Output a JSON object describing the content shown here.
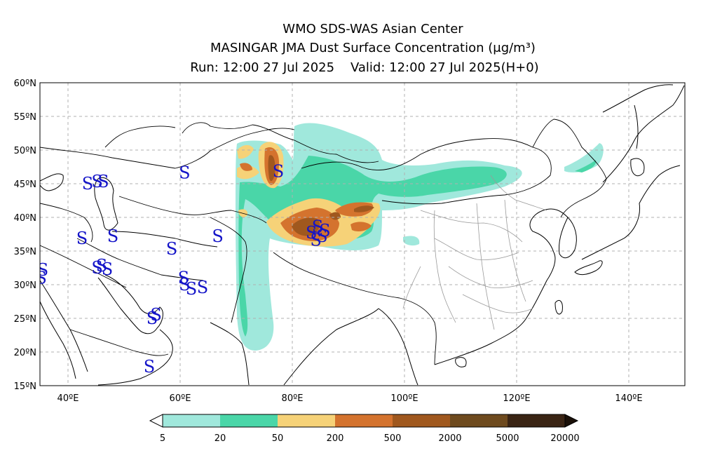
{
  "header": {
    "line1": "WMO SDS-WAS Asian Center",
    "line2": "MASINGAR JMA Dust Surface Concentration (μg/m³)",
    "line3": "Run: 12:00 27 Jul 2025    Valid: 12:00 27 Jul 2025(H+0)"
  },
  "map": {
    "lon_range": [
      35,
      150
    ],
    "lat_range": [
      15,
      60
    ],
    "lat_ticks": [
      {
        "value": 60,
        "label": "60ºN"
      },
      {
        "value": 55,
        "label": "55ºN"
      },
      {
        "value": 50,
        "label": "50ºN"
      },
      {
        "value": 45,
        "label": "45ºN"
      },
      {
        "value": 40,
        "label": "40ºN"
      },
      {
        "value": 35,
        "label": "35ºN"
      },
      {
        "value": 30,
        "label": "30ºN"
      },
      {
        "value": 25,
        "label": "25ºN"
      },
      {
        "value": 20,
        "label": "20ºN"
      },
      {
        "value": 15,
        "label": "15ºN"
      }
    ],
    "lon_ticks": [
      {
        "value": 40,
        "label": "40ºE"
      },
      {
        "value": 60,
        "label": "60ºE"
      },
      {
        "value": 80,
        "label": "80ºE"
      },
      {
        "value": 100,
        "label": "100ºE"
      },
      {
        "value": 120,
        "label": "120ºE"
      },
      {
        "value": 140,
        "label": "140ºE"
      }
    ],
    "grid": true
  },
  "dust_storm_marker": "S",
  "dust_storm_reports": [
    [
      43.5,
      45
    ],
    [
      45.2,
      45.3
    ],
    [
      46.3,
      45.3
    ],
    [
      60.8,
      46.6
    ],
    [
      77.5,
      46.8
    ],
    [
      42.5,
      36.9
    ],
    [
      48,
      37.2
    ],
    [
      58.5,
      35.3
    ],
    [
      66.7,
      37.2
    ],
    [
      35.5,
      32.2
    ],
    [
      35.2,
      31.0
    ],
    [
      45.2,
      32.5
    ],
    [
      46,
      32.8
    ],
    [
      47,
      32.3
    ],
    [
      60.6,
      31.0
    ],
    [
      60.8,
      30.0
    ],
    [
      62,
      29.4
    ],
    [
      64,
      29.6
    ],
    [
      55,
      25
    ],
    [
      55.7,
      25.5
    ],
    [
      54.5,
      17.8
    ],
    [
      83.4,
      37.7
    ],
    [
      84.5,
      38.6
    ],
    [
      85.8,
      38.0
    ],
    [
      84.2,
      36.6
    ],
    [
      85.3,
      37.2
    ]
  ],
  "legend": {
    "colors": [
      "#a0e8dc",
      "#4ad6a8",
      "#f6d278",
      "#d4732e",
      "#a0581e",
      "#6e4a1e",
      "#3a2414"
    ],
    "labels": [
      "5",
      "20",
      "50",
      "200",
      "500",
      "2000",
      "5000",
      "20000"
    ],
    "under_color": "#ffffff",
    "over_color": "#1a1008"
  }
}
